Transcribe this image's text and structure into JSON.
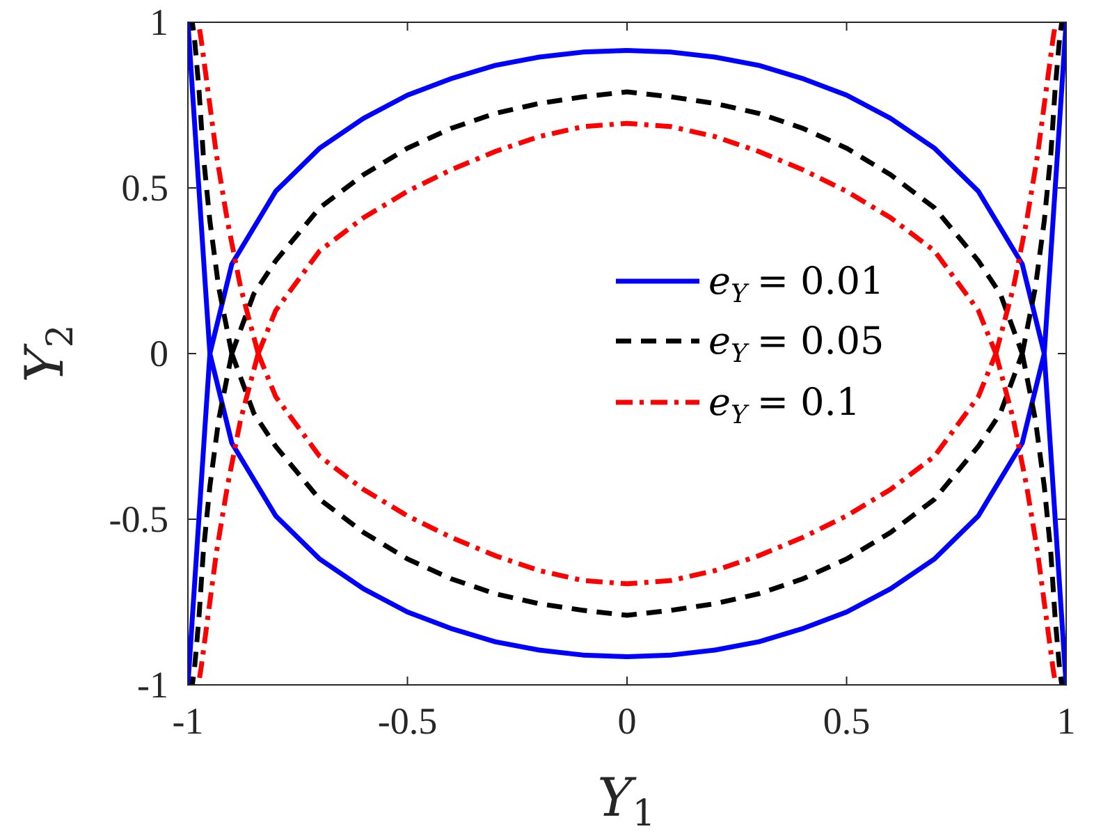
{
  "chart_data": {
    "type": "line",
    "title": "",
    "xlabel": {
      "main": "Y",
      "sub": "1"
    },
    "ylabel": {
      "main": "Y",
      "sub": "2"
    },
    "xlim": [
      -1,
      1
    ],
    "ylim": [
      -1,
      1
    ],
    "xticks": [
      -1,
      -0.5,
      0,
      0.5,
      1
    ],
    "yticks": [
      -1,
      -0.5,
      0,
      0.5,
      1
    ],
    "xtick_labels": [
      "-1",
      "-0.5",
      "0",
      "0.5",
      "1"
    ],
    "ytick_labels": [
      "-1",
      "-0.5",
      "0",
      "0.5",
      "1"
    ],
    "grid": false,
    "legend_position": "right",
    "series": [
      {
        "name": "e_Y = 0.01",
        "legend_var": "e",
        "legend_sub": "Y",
        "legend_value": "= 0.01",
        "color": "#0000ff",
        "style": "solid",
        "inner": {
          "x": [
            -0.95,
            -0.9,
            -0.8,
            -0.7,
            -0.6,
            -0.5,
            -0.4,
            -0.3,
            -0.2,
            -0.1,
            0,
            0.1,
            0.2,
            0.3,
            0.4,
            0.5,
            0.6,
            0.7,
            0.8,
            0.9,
            0.95
          ],
          "y": [
            0,
            0.27,
            0.49,
            0.62,
            0.71,
            0.78,
            0.83,
            0.87,
            0.895,
            0.91,
            0.915,
            0.91,
            0.895,
            0.87,
            0.83,
            0.78,
            0.71,
            0.62,
            0.49,
            0.27,
            0
          ]
        },
        "outer": {
          "x": [
            -0.95,
            -0.96,
            -0.97,
            -0.98,
            -0.99,
            -0.995,
            -1.0
          ],
          "y": [
            0,
            0.2,
            0.4,
            0.6,
            0.8,
            0.9,
            1.0
          ]
        }
      },
      {
        "name": "e_Y = 0.05",
        "legend_var": "e",
        "legend_sub": "Y",
        "legend_value": "= 0.05",
        "color": "#000000",
        "style": "dashed",
        "inner": {
          "x": [
            -0.9,
            -0.85,
            -0.8,
            -0.7,
            -0.6,
            -0.5,
            -0.4,
            -0.3,
            -0.2,
            -0.1,
            0,
            0.1,
            0.2,
            0.3,
            0.4,
            0.5,
            0.6,
            0.7,
            0.8,
            0.85,
            0.9
          ],
          "y": [
            0,
            0.18,
            0.28,
            0.44,
            0.54,
            0.62,
            0.68,
            0.725,
            0.755,
            0.775,
            0.79,
            0.775,
            0.755,
            0.725,
            0.68,
            0.62,
            0.54,
            0.44,
            0.28,
            0.18,
            0
          ]
        },
        "outer": {
          "x": [
            -0.9,
            -0.93,
            -0.95,
            -0.965,
            -0.975,
            -0.985,
            -0.99
          ],
          "y": [
            0,
            0.2,
            0.4,
            0.6,
            0.8,
            0.95,
            1.0
          ]
        }
      },
      {
        "name": "e_Y = 0.1",
        "legend_var": "e",
        "legend_sub": "Y",
        "legend_value": "= 0.1",
        "color": "#ff0000",
        "style": "dashdot",
        "inner": {
          "x": [
            -0.84,
            -0.8,
            -0.7,
            -0.6,
            -0.5,
            -0.4,
            -0.3,
            -0.2,
            -0.1,
            0,
            0.1,
            0.2,
            0.3,
            0.4,
            0.5,
            0.6,
            0.7,
            0.8,
            0.84
          ],
          "y": [
            0,
            0.13,
            0.31,
            0.41,
            0.49,
            0.555,
            0.61,
            0.655,
            0.685,
            0.695,
            0.685,
            0.655,
            0.61,
            0.555,
            0.49,
            0.41,
            0.31,
            0.13,
            0
          ]
        },
        "outer": {
          "x": [
            -0.84,
            -0.88,
            -0.91,
            -0.935,
            -0.955,
            -0.97,
            -0.976
          ],
          "y": [
            0,
            0.2,
            0.4,
            0.6,
            0.8,
            0.95,
            1.0
          ]
        }
      }
    ]
  }
}
